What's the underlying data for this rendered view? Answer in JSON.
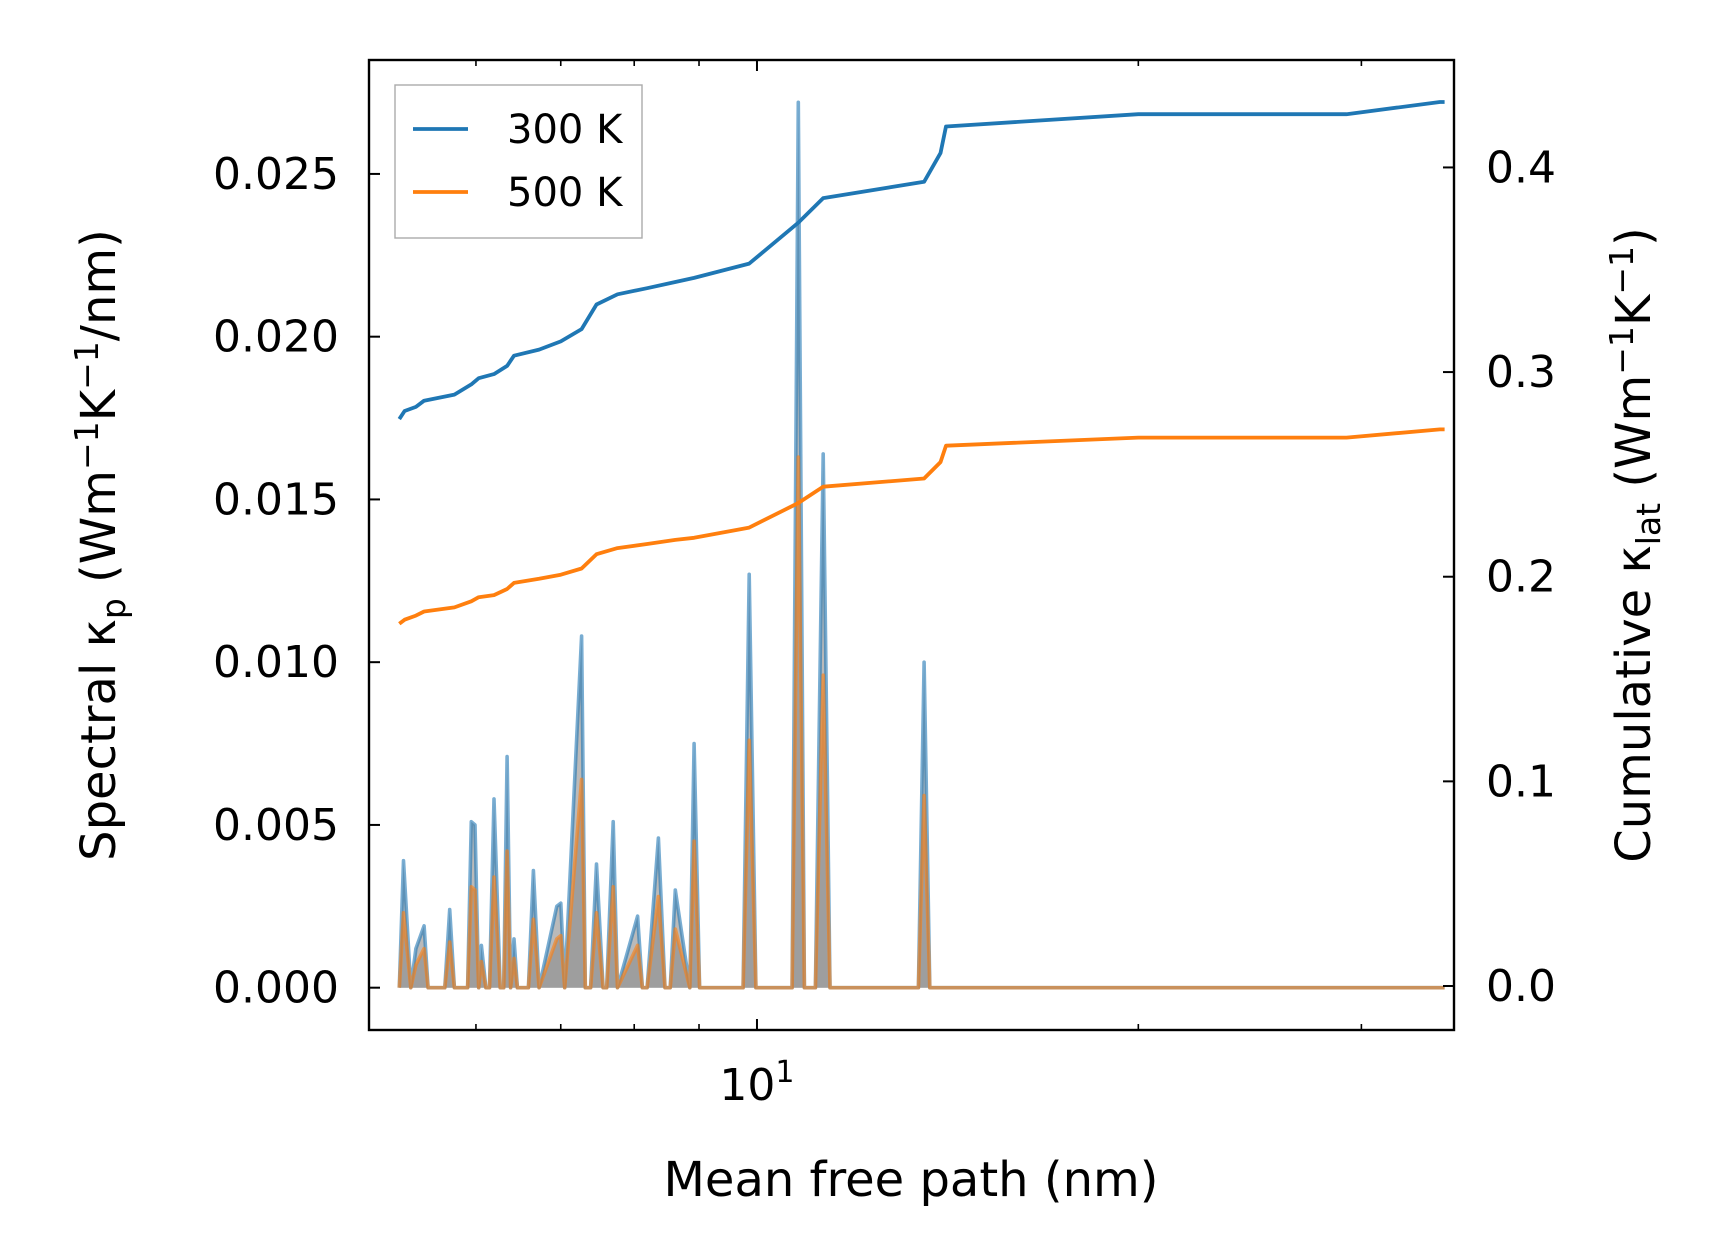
{
  "chart_data": {
    "type": "line",
    "xlabel": "Mean free path (nm)",
    "ylabel_left": {
      "main": "Spectral κ",
      "sub": "p",
      "unit_open": " (Wm",
      "sup1": "−1",
      "mid": "K",
      "sup2": "−1",
      "unit_close": "/nm)"
    },
    "ylabel_right": {
      "main": "Cumulative κ",
      "sub": "lat",
      "unit_open": " (Wm",
      "sup1": "−1",
      "mid": "K",
      "sup2": "−1",
      "unit_close": ")"
    },
    "x_scale": "log",
    "xlim": [
      4.94,
      35.5
    ],
    "ylim_left": [
      -0.0013,
      0.0285
    ],
    "ylim_right": [
      -0.0215,
      0.4525
    ],
    "x_ticks": [
      {
        "value": 10,
        "base": "10",
        "exp": "1"
      }
    ],
    "y_left_ticks": [
      0.0,
      0.005,
      0.01,
      0.015,
      0.02,
      0.025
    ],
    "y_left_tick_labels": [
      "0.000",
      "0.005",
      "0.010",
      "0.015",
      "0.020",
      "0.025"
    ],
    "y_right_ticks": [
      0.0,
      0.1,
      0.2,
      0.3,
      0.4
    ],
    "y_right_tick_labels": [
      "0.0",
      "0.1",
      "0.2",
      "0.3",
      "0.4"
    ],
    "legend": {
      "position": "top-left",
      "entries": [
        {
          "label": "300 K",
          "color": "#1f77b4"
        },
        {
          "label": "500 K",
          "color": "#ff7f0e"
        }
      ]
    },
    "colors": {
      "300K": "#1f77b4",
      "500K": "#ff7f0e",
      "fill": "#8c8c8c"
    },
    "spectral": {
      "x": [
        5.22,
        5.26,
        5.33,
        5.38,
        5.46,
        5.5,
        5.53,
        5.67,
        5.72,
        5.77,
        5.91,
        5.95,
        5.99,
        6.03,
        6.06,
        6.11,
        6.15,
        6.2,
        6.27,
        6.31,
        6.35,
        6.39,
        6.43,
        6.47,
        6.52,
        6.56,
        6.6,
        6.66,
        6.73,
        6.95,
        7.0,
        7.05,
        7.27,
        7.32,
        7.39,
        7.47,
        7.56,
        7.61,
        7.7,
        7.76,
        8.05,
        8.12,
        8.19,
        8.36,
        8.46,
        8.54,
        8.62,
        8.85,
        8.92,
        9.01,
        9.75,
        9.86,
        9.98,
        10.66,
        10.78,
        10.9,
        11.12,
        11.28,
        11.42,
        13.41,
        13.55,
        13.69,
        13.93,
        14.05,
        14.18,
        17.6,
        17.78,
        17.96,
        21.8,
        22.05,
        22.3,
        27.2,
        27.43,
        27.7,
        28.6,
        28.86,
        29.1,
        34.3,
        34.6,
        34.9
      ],
      "y300": [
        0,
        0.0039,
        0,
        0.0012,
        0.0019,
        0,
        0,
        0,
        0.0024,
        0,
        0,
        0.0051,
        0.005,
        0,
        0.0013,
        0,
        0,
        0.0058,
        0,
        0,
        0.0071,
        0,
        0.0015,
        0,
        0,
        0,
        0,
        0.0036,
        0,
        0.0025,
        0.0026,
        0,
        0.0108,
        0,
        0,
        0.0038,
        0,
        0,
        0.0051,
        0,
        0.0022,
        0,
        0,
        0.0046,
        0,
        0,
        0.003,
        0,
        0.0075,
        0,
        0,
        0.0127,
        0,
        0,
        0.0272,
        0,
        0,
        0.0164,
        0,
        0,
        0.01,
        0,
        0,
        0,
        0,
        0,
        0,
        0,
        0,
        0,
        0,
        0,
        0,
        0,
        0,
        0,
        0,
        0,
        0,
        0
      ],
      "y500": [
        0,
        0.0023,
        0,
        0.0007,
        0.0012,
        0,
        0,
        0,
        0.0014,
        0,
        0,
        0.0031,
        0.003,
        0,
        0.0008,
        0,
        0,
        0.0034,
        0,
        0,
        0.0042,
        0,
        0.0009,
        0,
        0,
        0,
        0,
        0.0021,
        0,
        0.0015,
        0.0016,
        0,
        0.0064,
        0,
        0,
        0.0023,
        0,
        0,
        0.0031,
        0,
        0.0013,
        0,
        0,
        0.0028,
        0,
        0,
        0.0018,
        0,
        0.0045,
        0,
        0,
        0.0076,
        0,
        0,
        0.0163,
        0,
        0,
        0.0096,
        0,
        0,
        0.0059,
        0,
        0,
        0,
        0,
        0,
        0,
        0,
        0,
        0,
        0,
        0,
        0,
        0,
        0,
        0,
        0,
        0,
        0,
        0
      ]
    },
    "cumulative": {
      "x": [
        5.22,
        5.27,
        5.38,
        5.46,
        5.77,
        5.95,
        6.03,
        6.2,
        6.35,
        6.43,
        6.73,
        7.0,
        7.27,
        7.47,
        7.76,
        8.19,
        8.62,
        8.92,
        9.86,
        10.78,
        11.28,
        13.55,
        13.96,
        14.1,
        20.0,
        27.43,
        28.86,
        29.2,
        34.6,
        34.9
      ],
      "y300": [
        0.277,
        0.281,
        0.283,
        0.286,
        0.289,
        0.294,
        0.297,
        0.299,
        0.303,
        0.308,
        0.311,
        0.315,
        0.321,
        0.333,
        0.338,
        0.341,
        0.344,
        0.346,
        0.353,
        0.373,
        0.385,
        0.393,
        0.407,
        0.42,
        0.426,
        0.426,
        0.426,
        0.426,
        0.432,
        0.432
      ],
      "y500": [
        0.177,
        0.179,
        0.181,
        0.183,
        0.185,
        0.188,
        0.19,
        0.191,
        0.194,
        0.197,
        0.199,
        0.201,
        0.204,
        0.211,
        0.214,
        0.216,
        0.218,
        0.219,
        0.224,
        0.236,
        0.244,
        0.248,
        0.256,
        0.264,
        0.268,
        0.268,
        0.268,
        0.268,
        0.272,
        0.272
      ]
    }
  }
}
